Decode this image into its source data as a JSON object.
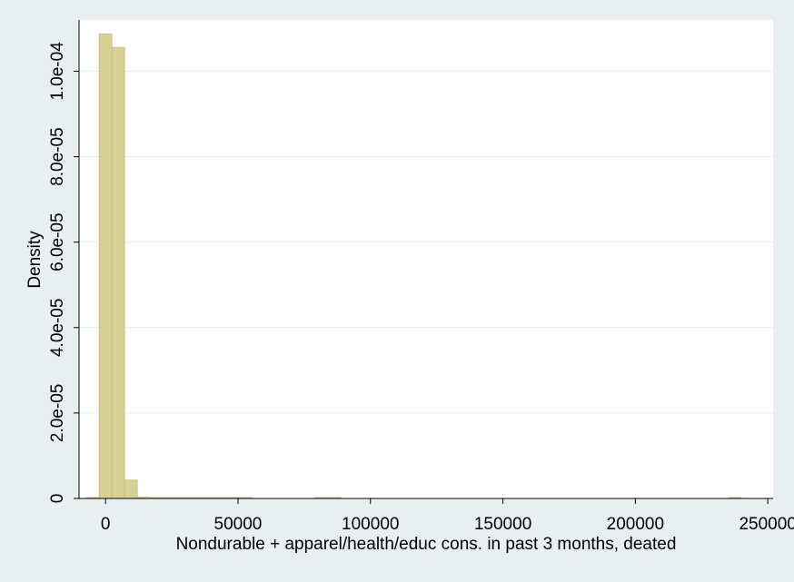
{
  "chart_data": {
    "type": "bar",
    "title": "",
    "xlabel": "Nondurable + apparel/health/educ cons. in past 3 months, deated",
    "ylabel": "Density",
    "xlim": [
      -10000,
      252000
    ],
    "ylim": [
      0,
      0.000112
    ],
    "x_ticks": [
      0,
      50000,
      100000,
      150000,
      200000,
      250000
    ],
    "x_tick_labels": [
      "0",
      "50000",
      "100000",
      "150000",
      "200000",
      "250000"
    ],
    "y_ticks": [
      0,
      2e-05,
      4e-05,
      6e-05,
      8e-05,
      0.0001
    ],
    "y_tick_labels": [
      "0",
      "2.0e-05",
      "4.0e-05",
      "6.0e-05",
      "8.0e-05",
      "1.0e-04"
    ],
    "grid": true,
    "bin_width": 4800,
    "bins": [
      {
        "x0": -7200,
        "x1": -2400,
        "density": 1e-07
      },
      {
        "x0": -2400,
        "x1": 2400,
        "density": 0.0001087
      },
      {
        "x0": 2400,
        "x1": 7200,
        "density": 0.0001056
      },
      {
        "x0": 7200,
        "x1": 12000,
        "density": 4.3e-06
      },
      {
        "x0": 12000,
        "x1": 16800,
        "density": 3e-07
      },
      {
        "x0": 16800,
        "x1": 21600,
        "density": 2e-07
      },
      {
        "x0": 21600,
        "x1": 26400,
        "density": 2e-07
      },
      {
        "x0": 26400,
        "x1": 31200,
        "density": 1e-07
      },
      {
        "x0": 31200,
        "x1": 36000,
        "density": 2e-07
      },
      {
        "x0": 36000,
        "x1": 40800,
        "density": 2e-07
      },
      {
        "x0": 40800,
        "x1": 45600,
        "density": 2e-07
      },
      {
        "x0": 45600,
        "x1": 50400,
        "density": 1e-07
      },
      {
        "x0": 50400,
        "x1": 55200,
        "density": 1e-07
      },
      {
        "x0": 79200,
        "x1": 84000,
        "density": 2e-07
      },
      {
        "x0": 84000,
        "x1": 88800,
        "density": 2e-07
      },
      {
        "x0": 235200,
        "x1": 240000,
        "density": 2e-07
      }
    ],
    "colors": {
      "background": "#e8eff2",
      "plot_background": "#ffffff",
      "bar_fill": "#d8d196",
      "bar_stroke": "#c2ba7a",
      "grid": "#e9eef1"
    }
  }
}
